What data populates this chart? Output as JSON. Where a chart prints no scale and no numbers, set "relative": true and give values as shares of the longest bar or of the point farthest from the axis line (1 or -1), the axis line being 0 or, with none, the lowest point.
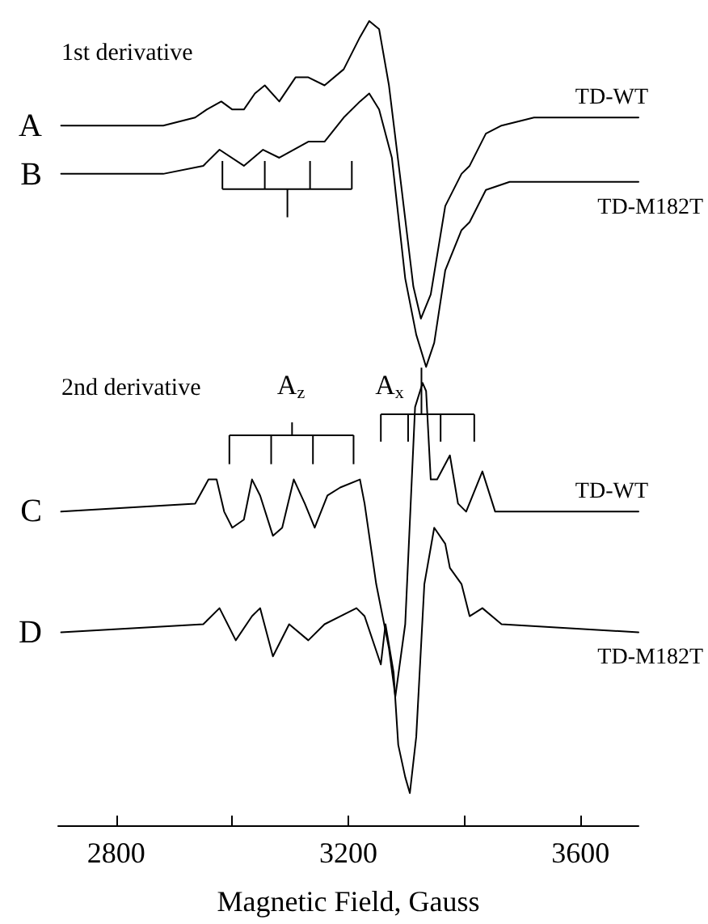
{
  "chart_data": {
    "type": "line",
    "relative": true,
    "xlabel": "Magnetic Field, Gauss",
    "xlim": [
      2700,
      3700
    ],
    "xticks": [
      2800,
      {
        "value": 3000,
        "label": null
      },
      3200,
      {
        "value": 3400,
        "label": null
      },
      3600
    ],
    "tick_labels": "x",
    "grid": false,
    "legend": false,
    "marker": "none",
    "line_style": "solid",
    "series": [
      {
        "name": "TD-WT",
        "color": "#000000",
        "x": [
          2705,
          2881,
          2936,
          2956,
          2981,
          3000,
          3020,
          3039,
          3056,
          3081,
          3109,
          3131,
          3159,
          3192,
          3220,
          3236,
          3253,
          3270,
          3292,
          3312,
          3325,
          3342,
          3367,
          3395,
          3409,
          3437,
          3464,
          3520,
          3700
        ],
        "values": [
          0.87,
          0.87,
          0.88,
          0.89,
          0.9,
          0.89,
          0.89,
          0.91,
          0.92,
          0.9,
          0.93,
          0.93,
          0.92,
          0.94,
          0.98,
          1.0,
          0.99,
          0.92,
          0.79,
          0.67,
          0.63,
          0.66,
          0.77,
          0.81,
          0.82,
          0.86,
          0.87,
          0.88,
          0.88
        ]
      },
      {
        "name": "TD-M182T",
        "color": "#000000",
        "x": [
          2705,
          2881,
          2950,
          2978,
          3020,
          3053,
          3081,
          3131,
          3159,
          3192,
          3220,
          3236,
          3253,
          3275,
          3298,
          3317,
          3334,
          3348,
          3367,
          3395,
          3409,
          3437,
          3478,
          3700
        ],
        "values": [
          0.81,
          0.81,
          0.82,
          0.84,
          0.82,
          0.84,
          0.83,
          0.85,
          0.85,
          0.88,
          0.9,
          0.91,
          0.89,
          0.83,
          0.68,
          0.61,
          0.57,
          0.6,
          0.69,
          0.74,
          0.75,
          0.79,
          0.8,
          0.8
        ]
      },
      {
        "name": "TD-WT",
        "color": "#000000",
        "x": [
          2705,
          2936,
          2959,
          2973,
          2986,
          3000,
          3020,
          3034,
          3048,
          3070,
          3086,
          3106,
          3125,
          3142,
          3164,
          3186,
          3220,
          3228,
          3248,
          3270,
          3281,
          3298,
          3315,
          3328,
          3334,
          3342,
          3353,
          3375,
          3389,
          3403,
          3431,
          3453,
          3481,
          3700
        ],
        "values": [
          0.39,
          0.4,
          0.43,
          0.43,
          0.39,
          0.37,
          0.38,
          0.43,
          0.41,
          0.36,
          0.37,
          0.43,
          0.4,
          0.37,
          0.41,
          0.42,
          0.43,
          0.4,
          0.3,
          0.22,
          0.16,
          0.25,
          0.52,
          0.55,
          0.54,
          0.43,
          0.43,
          0.46,
          0.4,
          0.39,
          0.44,
          0.39,
          0.39,
          0.39
        ]
      },
      {
        "name": "TD-M182T",
        "color": "#000000",
        "x": [
          2705,
          2950,
          2978,
          3006,
          3034,
          3048,
          3070,
          3098,
          3131,
          3159,
          3214,
          3228,
          3256,
          3264,
          3278,
          3286,
          3298,
          3306,
          3317,
          3331,
          3348,
          3367,
          3375,
          3395,
          3409,
          3431,
          3464,
          3700
        ],
        "values": [
          0.24,
          0.25,
          0.27,
          0.23,
          0.26,
          0.27,
          0.21,
          0.25,
          0.23,
          0.25,
          0.27,
          0.26,
          0.2,
          0.25,
          0.19,
          0.1,
          0.06,
          0.04,
          0.11,
          0.3,
          0.37,
          0.35,
          0.32,
          0.3,
          0.26,
          0.27,
          0.25,
          0.24
        ]
      }
    ],
    "annotations": [
      "1st derivative",
      "2nd derivative",
      "A$_{z}$",
      "A$_{x}$",
      "A",
      "B",
      "C",
      "D"
    ]
  }
}
